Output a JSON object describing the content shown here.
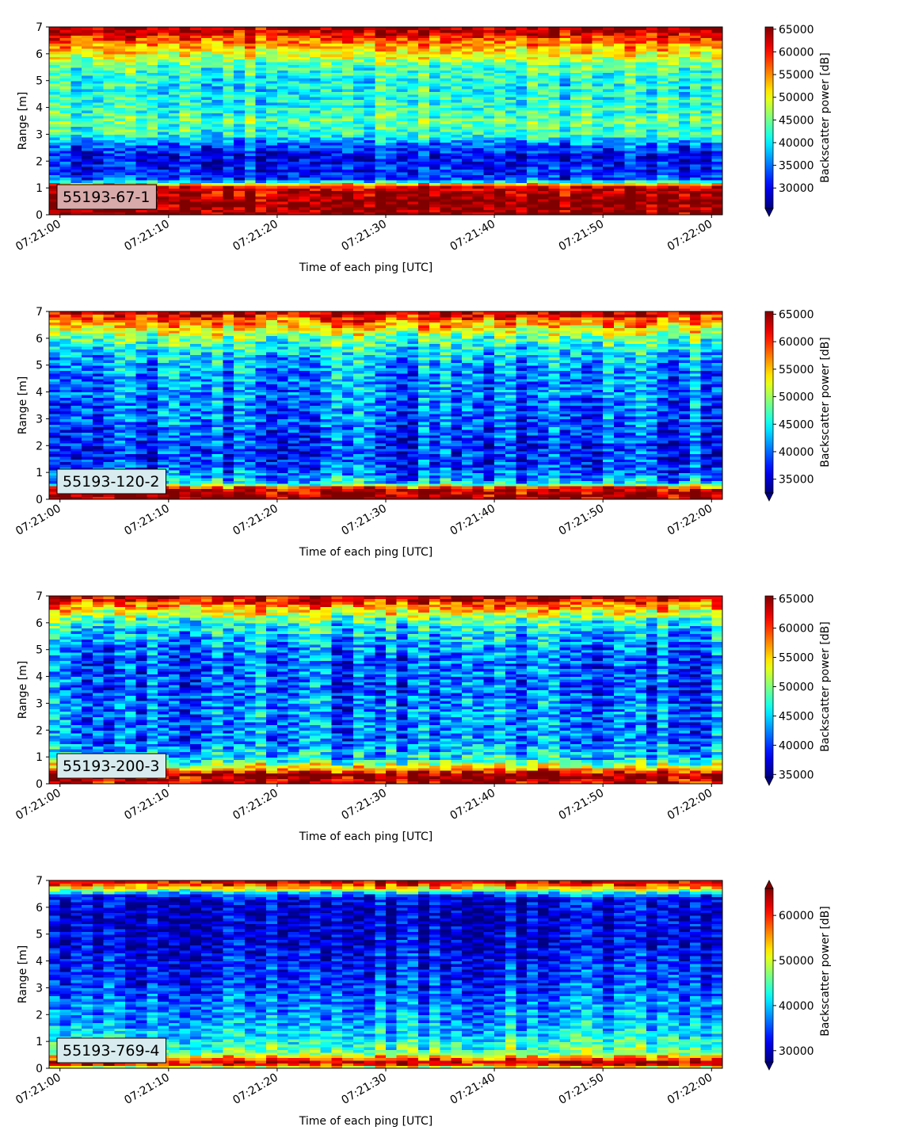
{
  "figure": {
    "x_axis_label": "Time of each ping [UTC]",
    "y_axis_label": "Range [m]",
    "colorbar_label": "Backscatter power [dB]",
    "x_tick_labels": [
      "07:21:00",
      "07:21:10",
      "07:21:20",
      "07:21:30",
      "07:21:40",
      "07:21:50",
      "07:22:00"
    ],
    "y_tick_labels": [
      "0",
      "1",
      "2",
      "3",
      "4",
      "5",
      "6",
      "7"
    ],
    "colormap": "jet"
  },
  "chart_data": [
    {
      "type": "heatmap",
      "panel_label": "55193-67-1",
      "label_box_color": "#d9aaaa",
      "xlabel": "Time of each ping [UTC]",
      "ylabel": "Range [m]",
      "colorbar_label": "Backscatter power [dB]",
      "x_ticks": [
        "07:21:00",
        "07:21:10",
        "07:21:20",
        "07:21:30",
        "07:21:40",
        "07:21:50",
        "07:22:00"
      ],
      "xlim_seconds": [
        -1,
        61
      ],
      "ylim": [
        0,
        7
      ],
      "y_ticks": [
        0,
        1,
        2,
        3,
        4,
        5,
        6,
        7
      ],
      "clim": [
        25500,
        65500
      ],
      "colorbar_ticks": [
        30000,
        35000,
        40000,
        45000,
        50000,
        55000,
        60000,
        65000
      ],
      "colorbar_extend": "min",
      "range_profile": [
        {
          "range": 0.2,
          "value": 65000
        },
        {
          "range": 0.5,
          "value": 65000
        },
        {
          "range": 0.9,
          "value": 63000
        },
        {
          "range": 1.1,
          "value": 60000
        },
        {
          "range": 1.3,
          "value": 33000
        },
        {
          "range": 1.8,
          "value": 31000
        },
        {
          "range": 2.2,
          "value": 30000
        },
        {
          "range": 2.6,
          "value": 34000
        },
        {
          "range": 3.0,
          "value": 42000
        },
        {
          "range": 3.5,
          "value": 44000
        },
        {
          "range": 4.0,
          "value": 42000
        },
        {
          "range": 4.5,
          "value": 41000
        },
        {
          "range": 5.0,
          "value": 41000
        },
        {
          "range": 5.5,
          "value": 43000
        },
        {
          "range": 6.0,
          "value": 50000
        },
        {
          "range": 6.4,
          "value": 55000
        },
        {
          "range": 6.8,
          "value": 62000
        },
        {
          "range": 7.0,
          "value": 64000
        }
      ]
    },
    {
      "type": "heatmap",
      "panel_label": "55193-120-2",
      "label_box_color": "#d8ecef",
      "xlabel": "Time of each ping [UTC]",
      "ylabel": "Range [m]",
      "colorbar_label": "Backscatter power [dB]",
      "x_ticks": [
        "07:21:00",
        "07:21:10",
        "07:21:20",
        "07:21:30",
        "07:21:40",
        "07:21:50",
        "07:22:00"
      ],
      "xlim_seconds": [
        -1,
        61
      ],
      "ylim": [
        0,
        7
      ],
      "y_ticks": [
        0,
        1,
        2,
        3,
        4,
        5,
        6,
        7
      ],
      "clim": [
        32500,
        65500
      ],
      "colorbar_ticks": [
        35000,
        40000,
        45000,
        50000,
        55000,
        60000,
        65000
      ],
      "colorbar_extend": "min",
      "range_profile": [
        {
          "range": 0.1,
          "value": 65000
        },
        {
          "range": 0.4,
          "value": 64000
        },
        {
          "range": 0.6,
          "value": 44000
        },
        {
          "range": 1.0,
          "value": 40000
        },
        {
          "range": 1.5,
          "value": 38000
        },
        {
          "range": 2.0,
          "value": 38000
        },
        {
          "range": 2.5,
          "value": 39000
        },
        {
          "range": 3.0,
          "value": 40000
        },
        {
          "range": 3.5,
          "value": 40000
        },
        {
          "range": 4.0,
          "value": 41000
        },
        {
          "range": 4.5,
          "value": 41000
        },
        {
          "range": 5.0,
          "value": 42000
        },
        {
          "range": 5.5,
          "value": 44000
        },
        {
          "range": 6.0,
          "value": 48000
        },
        {
          "range": 6.4,
          "value": 54000
        },
        {
          "range": 6.8,
          "value": 60000
        },
        {
          "range": 7.0,
          "value": 64000
        }
      ]
    },
    {
      "type": "heatmap",
      "panel_label": "55193-200-3",
      "label_box_color": "#d8ecef",
      "xlabel": "Time of each ping [UTC]",
      "ylabel": "Range [m]",
      "colorbar_label": "Backscatter power [dB]",
      "x_ticks": [
        "07:21:00",
        "07:21:10",
        "07:21:20",
        "07:21:30",
        "07:21:40",
        "07:21:50",
        "07:22:00"
      ],
      "xlim_seconds": [
        -1,
        61
      ],
      "ylim": [
        0,
        7
      ],
      "y_ticks": [
        0,
        1,
        2,
        3,
        4,
        5,
        6,
        7
      ],
      "clim": [
        34500,
        65500
      ],
      "colorbar_ticks": [
        35000,
        40000,
        45000,
        50000,
        55000,
        60000,
        65000
      ],
      "colorbar_extend": "min",
      "range_profile": [
        {
          "range": 0.1,
          "value": 63000
        },
        {
          "range": 0.35,
          "value": 65000
        },
        {
          "range": 0.6,
          "value": 55000
        },
        {
          "range": 0.9,
          "value": 46000
        },
        {
          "range": 1.2,
          "value": 44000
        },
        {
          "range": 1.6,
          "value": 42000
        },
        {
          "range": 2.0,
          "value": 42000
        },
        {
          "range": 2.5,
          "value": 42000
        },
        {
          "range": 3.0,
          "value": 42000
        },
        {
          "range": 3.5,
          "value": 41000
        },
        {
          "range": 4.0,
          "value": 41000
        },
        {
          "range": 4.5,
          "value": 41000
        },
        {
          "range": 5.0,
          "value": 42000
        },
        {
          "range": 5.5,
          "value": 44000
        },
        {
          "range": 6.0,
          "value": 47000
        },
        {
          "range": 6.4,
          "value": 53000
        },
        {
          "range": 6.8,
          "value": 60000
        },
        {
          "range": 7.0,
          "value": 64000
        }
      ]
    },
    {
      "type": "heatmap",
      "panel_label": "55193-769-4",
      "label_box_color": "#d8ecef",
      "xlabel": "Time of each ping [UTC]",
      "ylabel": "Range [m]",
      "colorbar_label": "Backscatter power [dB]",
      "x_ticks": [
        "07:21:00",
        "07:21:10",
        "07:21:20",
        "07:21:30",
        "07:21:40",
        "07:21:50",
        "07:22:00"
      ],
      "xlim_seconds": [
        -1,
        61
      ],
      "ylim": [
        0,
        7
      ],
      "y_ticks": [
        0,
        1,
        2,
        3,
        4,
        5,
        6,
        7
      ],
      "clim": [
        27500,
        66000
      ],
      "colorbar_ticks": [
        30000,
        40000,
        50000,
        60000
      ],
      "colorbar_extend": "both",
      "range_profile": [
        {
          "range": 0.05,
          "value": 52000
        },
        {
          "range": 0.2,
          "value": 65000
        },
        {
          "range": 0.35,
          "value": 58000
        },
        {
          "range": 0.6,
          "value": 46000
        },
        {
          "range": 1.0,
          "value": 43000
        },
        {
          "range": 1.5,
          "value": 40000
        },
        {
          "range": 2.0,
          "value": 38000
        },
        {
          "range": 2.5,
          "value": 37000
        },
        {
          "range": 3.0,
          "value": 35000
        },
        {
          "range": 3.5,
          "value": 34000
        },
        {
          "range": 4.0,
          "value": 33000
        },
        {
          "range": 4.5,
          "value": 32000
        },
        {
          "range": 5.0,
          "value": 31000
        },
        {
          "range": 5.5,
          "value": 31000
        },
        {
          "range": 6.0,
          "value": 31000
        },
        {
          "range": 6.4,
          "value": 32000
        },
        {
          "range": 6.7,
          "value": 50000
        },
        {
          "range": 6.9,
          "value": 62000
        },
        {
          "range": 7.0,
          "value": 64000
        }
      ]
    }
  ]
}
